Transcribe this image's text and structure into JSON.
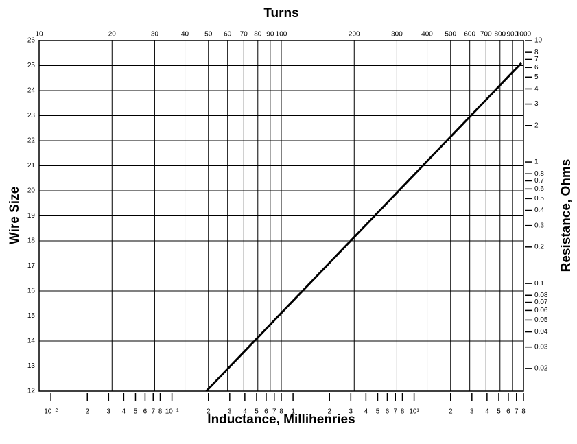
{
  "chart_data": {
    "type": "line",
    "x2label": "Turns",
    "xlabel": "Inductance, Millihenries",
    "ylabel": "Wire Size",
    "y2label": "Resistance, Ohms",
    "x2lim": [
      10,
      1000
    ],
    "x2log": true,
    "x2ticks": [
      10,
      20,
      30,
      40,
      50,
      60,
      70,
      80,
      90,
      100,
      200,
      300,
      400,
      500,
      600,
      700,
      800,
      900,
      1000
    ],
    "xlim": [
      0.008,
      80
    ],
    "xlog": true,
    "xticks": [
      {
        "value": 0.01,
        "label": "10⁻²"
      },
      {
        "value": 0.02,
        "label": "2"
      },
      {
        "value": 0.03,
        "label": "3"
      },
      {
        "value": 0.04,
        "label": "4"
      },
      {
        "value": 0.05,
        "label": "5"
      },
      {
        "value": 0.06,
        "label": "6"
      },
      {
        "value": 0.07,
        "label": "7"
      },
      {
        "value": 0.08,
        "label": "8"
      },
      {
        "value": 0.1,
        "label": "10⁻¹"
      },
      {
        "value": 0.2,
        "label": "2"
      },
      {
        "value": 0.3,
        "label": "3"
      },
      {
        "value": 0.4,
        "label": "4"
      },
      {
        "value": 0.5,
        "label": "5"
      },
      {
        "value": 0.6,
        "label": "6"
      },
      {
        "value": 0.7,
        "label": "7"
      },
      {
        "value": 0.8,
        "label": "8"
      },
      1,
      2,
      3,
      4,
      5,
      6,
      7,
      8,
      {
        "value": 10,
        "label": "10¹"
      },
      {
        "value": 20,
        "label": "2"
      },
      {
        "value": 30,
        "label": "3"
      },
      {
        "value": 40,
        "label": "4"
      },
      {
        "value": 50,
        "label": "5"
      },
      {
        "value": 60,
        "label": "6"
      },
      {
        "value": 70,
        "label": "7"
      },
      {
        "value": 80,
        "label": "8"
      }
    ],
    "ylim": [
      12,
      26
    ],
    "yticks": [
      12,
      13,
      14,
      15,
      16,
      17,
      18,
      19,
      20,
      21,
      22,
      23,
      24,
      25,
      26
    ],
    "y2lim": [
      0.013,
      10
    ],
    "y2log": true,
    "y2ticks": [
      10,
      8,
      7,
      6,
      5,
      4,
      3,
      2,
      1,
      0.8,
      0.7,
      0.6,
      0.5,
      0.4,
      0.3,
      0.2,
      0.1,
      0.08,
      0.07,
      0.06,
      0.05,
      0.04,
      0.03,
      0.02
    ],
    "grid": true,
    "series": [
      {
        "color": "#000000",
        "xaxis": "x2",
        "x": [
          49,
          980
        ],
        "values": [
          12,
          25.1
        ]
      }
    ]
  }
}
